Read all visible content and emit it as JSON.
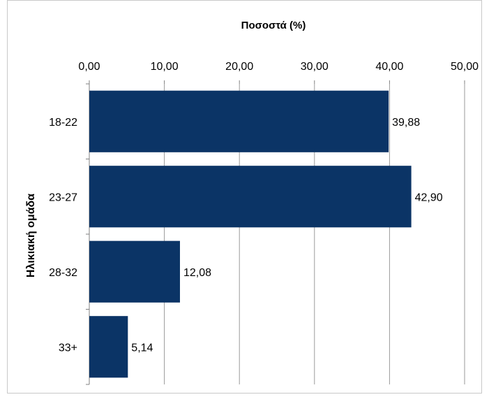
{
  "chart_data": {
    "type": "bar",
    "orientation": "horizontal",
    "title": "Ποσοστά (%)",
    "xlabel": "Ποσοστά (%)",
    "ylabel": "Ηλικιακή ομάδα",
    "categories": [
      "18-22",
      "23-27",
      "28-32",
      "33+"
    ],
    "values": [
      39.88,
      42.9,
      12.08,
      5.14
    ],
    "data_labels": [
      "39,88",
      "42,90",
      "12,08",
      "5,14"
    ],
    "xlim": [
      0,
      50
    ],
    "x_ticks": [
      "0,00",
      "10,00",
      "20,00",
      "30,00",
      "40,00",
      "50,00"
    ],
    "x_axis_position": "top",
    "grid": true,
    "legend": "none",
    "bar_color": "#0b3466",
    "gridline_color": "#9a9a9a"
  }
}
